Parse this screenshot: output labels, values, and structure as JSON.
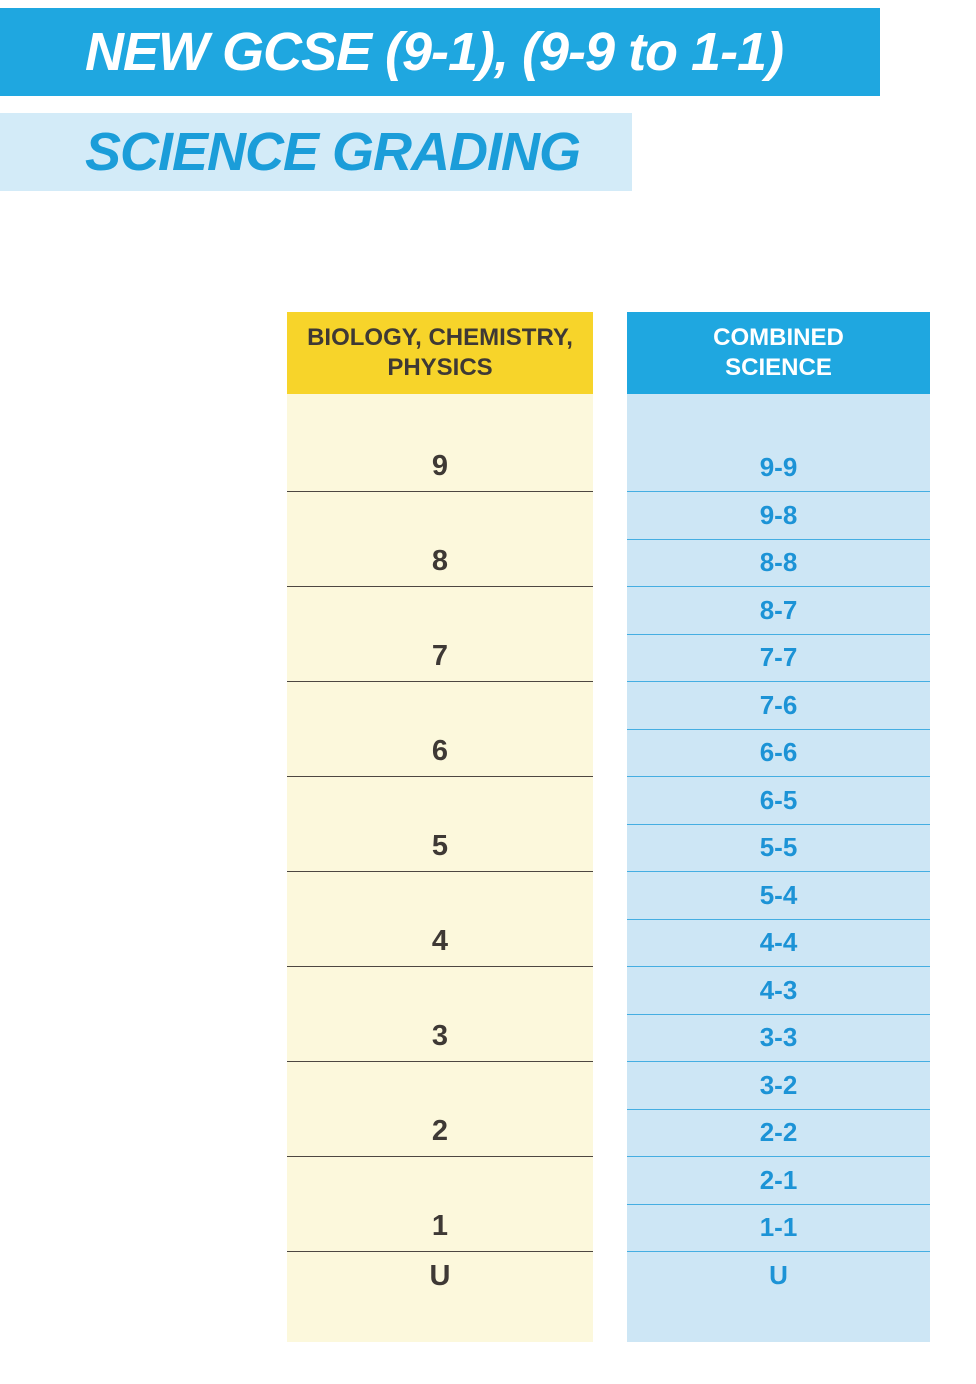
{
  "banners": {
    "title": "NEW GCSE (9-1), (9-9 to 1-1)",
    "subtitle": "SCIENCE GRADING"
  },
  "table": {
    "left": {
      "header_line1": "BIOLOGY, CHEMISTRY,",
      "header_line2": "PHYSICS",
      "grades": [
        "9",
        "8",
        "7",
        "6",
        "5",
        "4",
        "3",
        "2",
        "1",
        "U"
      ]
    },
    "right": {
      "header_line1": "COMBINED",
      "header_line2": "SCIENCE",
      "grades": [
        "",
        "9-9",
        "9-8",
        "8-8",
        "8-7",
        "7-7",
        "7-6",
        "6-6",
        "6-5",
        "5-5",
        "5-4",
        "4-4",
        "4-3",
        "3-3",
        "3-2",
        "2-2",
        "2-1",
        "1-1",
        "U"
      ]
    }
  },
  "colors": {
    "banner_blue": "#1FA7E0",
    "banner_light": "#D3EBF8",
    "subtitle_blue": "#1B9DD9",
    "header_yellow": "#F7D42A",
    "cream": "#FCF8DC",
    "light_col": "#CDE6F5",
    "dark_text": "#3E3935",
    "right_text": "#1C93D6",
    "left_line": "#4D4742",
    "right_line": "#45AEE2"
  }
}
